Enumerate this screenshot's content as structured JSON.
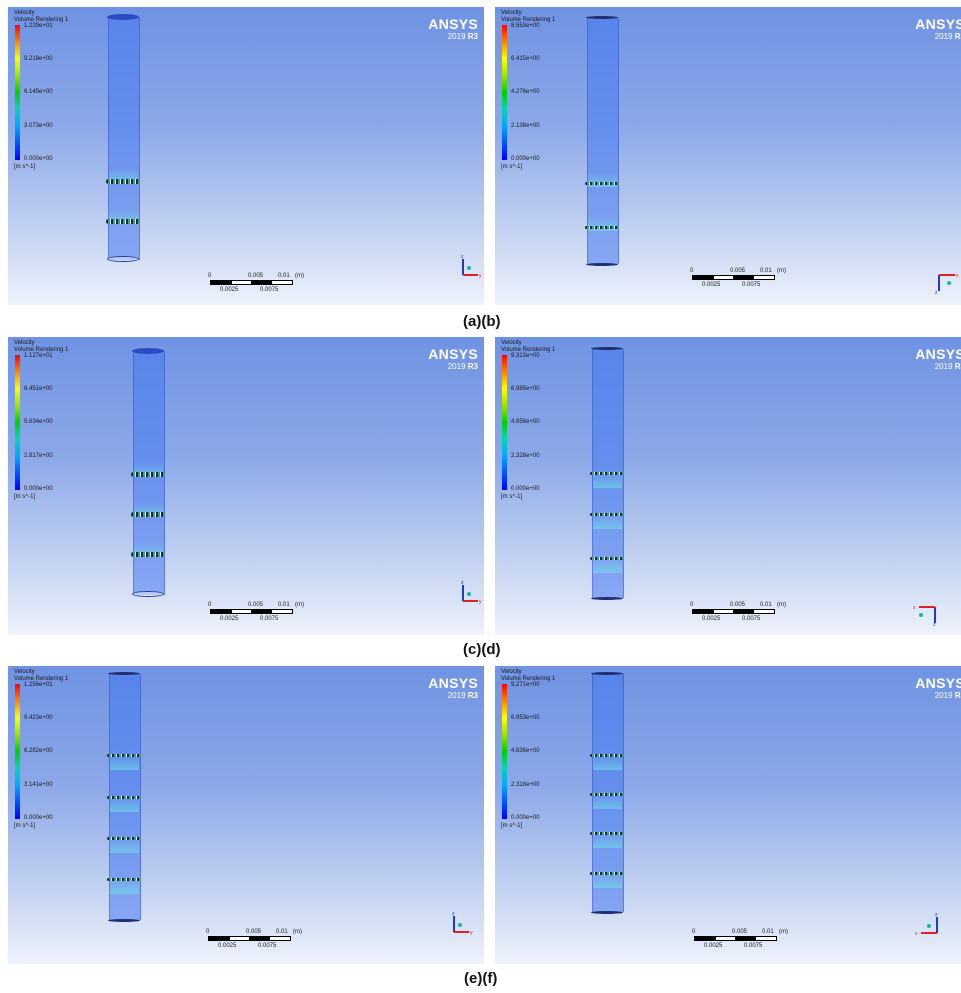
{
  "legend": {
    "title": "Velocity\nVolume Rendering 1",
    "unit": "[m s^-1]"
  },
  "brand": {
    "name": "ANSYS",
    "version_prefix": "2019",
    "version_release": "R3"
  },
  "scale": {
    "label_0": "0",
    "label_mid": "0.005",
    "label_end": "0.01",
    "unit": "(m)",
    "label_q1": "0.0025",
    "label_q3": "0.0075"
  },
  "panels": [
    {
      "ticks": [
        "1.229e+01",
        "9.218e+00",
        "6.145e+00",
        "3.073e+00",
        "0.000e+00"
      ],
      "rings": 2,
      "axis_orientation": "z-up"
    },
    {
      "ticks": [
        "8.553e+00",
        "6.415e+00",
        "4.276e+00",
        "2.138e+00",
        "0.000e+00"
      ],
      "rings": 2,
      "axis_orientation": "z-down"
    },
    {
      "ticks": [
        "1.127e+01",
        "8.451e+00",
        "5.634e+00",
        "2.817e+00",
        "0.000e+00"
      ],
      "rings": 3,
      "axis_orientation": "z-up"
    },
    {
      "ticks": [
        "9.313e+00",
        "6.985e+00",
        "4.656e+00",
        "2.328e+00",
        "0.000e+00"
      ],
      "rings": 3,
      "axis_orientation": "z-down"
    },
    {
      "ticks": [
        "1.256e+01",
        "9.423e+00",
        "6.282e+00",
        "3.141e+00",
        "0.000e+00"
      ],
      "rings": 4,
      "axis_orientation": "z-up"
    },
    {
      "ticks": [
        "9.271e+00",
        "6.953e+00",
        "4.636e+00",
        "2.318e+00",
        "0.000e+00"
      ],
      "rings": 4,
      "axis_orientation": "z-up"
    }
  ],
  "captions": [
    "(a)(b)",
    "(c)(d)",
    "(e)(f)"
  ],
  "colors": {
    "background_top": "#6f93e3",
    "background_bottom": "#eef2fb",
    "tube": "#4678f0",
    "colorbar_max": "#ff0000",
    "colorbar_min": "#0000ff"
  }
}
